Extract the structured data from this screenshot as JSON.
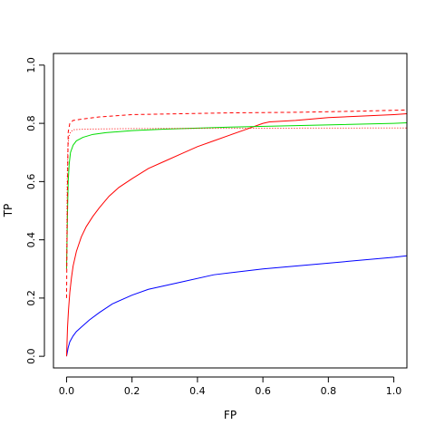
{
  "chart_data": {
    "type": "line",
    "title": "",
    "xlabel": "FP",
    "ylabel": "TP",
    "xlim": [
      -0.04,
      1.04
    ],
    "ylim": [
      -0.04,
      1.04
    ],
    "grid": false,
    "legend": "none",
    "x_ticks": [
      0.0,
      0.2,
      0.4,
      0.6,
      0.8,
      1.0
    ],
    "x_tick_labels": [
      "0.0",
      "0.2",
      "0.4",
      "0.6",
      "0.8",
      "1.0"
    ],
    "y_ticks": [
      0.0,
      0.2,
      0.4,
      0.6,
      0.8,
      1.0
    ],
    "y_tick_labels": [
      "0.0",
      "0.2",
      "0.4",
      "0.6",
      "0.8",
      "1.0"
    ],
    "series": [
      {
        "color": "#0000ff",
        "line_style": "solid",
        "x": [
          0,
          0.005,
          0.01,
          0.02,
          0.03,
          0.05,
          0.07,
          0.1,
          0.14,
          0.2,
          0.25,
          0.35,
          0.45,
          0.6,
          0.8,
          1.0,
          1.04
        ],
        "y": [
          0,
          0.03,
          0.05,
          0.07,
          0.085,
          0.105,
          0.125,
          0.15,
          0.18,
          0.21,
          0.23,
          0.255,
          0.28,
          0.3,
          0.32,
          0.34,
          0.345
        ]
      },
      {
        "color": "#ff0000",
        "line_style": "solid",
        "x": [
          0,
          0.003,
          0.006,
          0.01,
          0.015,
          0.02,
          0.03,
          0.045,
          0.06,
          0.08,
          0.1,
          0.13,
          0.16,
          0.2,
          0.25,
          0.3,
          0.35,
          0.4,
          0.45,
          0.5,
          0.55,
          0.6,
          0.62,
          0.7,
          0.8,
          0.9,
          1.0,
          1.04
        ],
        "y": [
          0,
          0.1,
          0.16,
          0.22,
          0.27,
          0.31,
          0.36,
          0.41,
          0.445,
          0.48,
          0.51,
          0.55,
          0.58,
          0.61,
          0.645,
          0.67,
          0.695,
          0.72,
          0.74,
          0.76,
          0.78,
          0.8,
          0.805,
          0.81,
          0.82,
          0.825,
          0.83,
          0.833
        ]
      },
      {
        "color": "#00dd00",
        "line_style": "solid",
        "x": [
          0,
          0.003,
          0.005,
          0.008,
          0.012,
          0.02,
          0.03,
          0.05,
          0.08,
          0.12,
          0.2,
          0.3,
          0.5,
          0.7,
          1.0,
          1.04
        ],
        "y": [
          0.3,
          0.5,
          0.6,
          0.66,
          0.7,
          0.725,
          0.74,
          0.752,
          0.762,
          0.768,
          0.775,
          0.78,
          0.787,
          0.792,
          0.8,
          0.802
        ]
      },
      {
        "color": "#ff0000",
        "line_style": "dashed",
        "x": [
          0,
          0.003,
          0.005,
          0.01,
          0.02,
          0.05,
          0.1,
          0.2,
          0.3,
          0.5,
          0.7,
          0.9,
          1.04
        ],
        "y": [
          0.2,
          0.6,
          0.77,
          0.8,
          0.81,
          0.815,
          0.822,
          0.83,
          0.832,
          0.836,
          0.838,
          0.842,
          0.846
        ]
      },
      {
        "color": "#ff0000",
        "line_style": "dotted",
        "x": [
          0,
          0.002,
          0.004,
          0.007,
          0.012,
          0.02,
          0.05,
          0.2,
          0.5,
          1.0,
          1.04
        ],
        "y": [
          0.3,
          0.6,
          0.72,
          0.755,
          0.77,
          0.778,
          0.78,
          0.782,
          0.783,
          0.784,
          0.784
        ]
      }
    ]
  }
}
